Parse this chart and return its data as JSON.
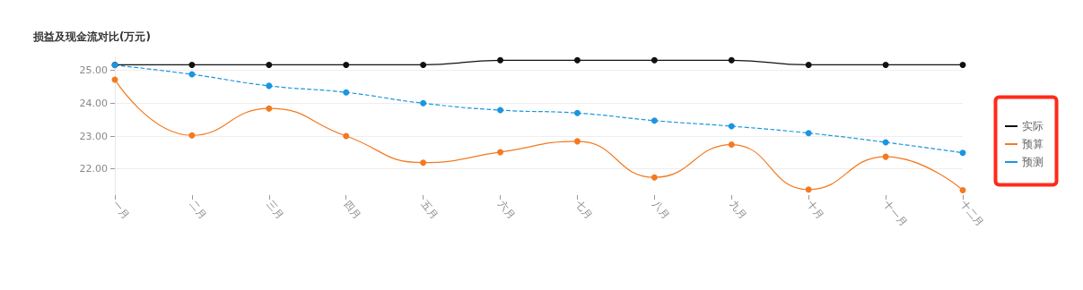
{
  "chart_data": {
    "type": "line",
    "title": "损益及现金流对比(万元)",
    "categories": [
      "一月",
      "二月",
      "三月",
      "四月",
      "五月",
      "六月",
      "七月",
      "八月",
      "九月",
      "十月",
      "十一月",
      "十二月"
    ],
    "series": [
      {
        "name": "实际",
        "color": "#111111",
        "line_style": "solid",
        "values": [
          25.17,
          25.17,
          25.17,
          25.17,
          25.17,
          25.31,
          25.31,
          25.31,
          25.31,
          25.17,
          25.17,
          25.17
        ]
      },
      {
        "name": "预算",
        "color": "#f47920",
        "line_style": "solid",
        "values": [
          24.72,
          23.02,
          23.84,
          23.0,
          22.19,
          22.51,
          22.84,
          21.74,
          22.74,
          21.37,
          22.37,
          21.35
        ]
      },
      {
        "name": "预测",
        "color": "#1a96e0",
        "line_style": "dashed",
        "values": [
          25.16,
          24.88,
          24.53,
          24.33,
          24.0,
          23.79,
          23.7,
          23.47,
          23.3,
          23.09,
          22.81,
          22.49
        ]
      }
    ],
    "ylim": [
      21.2,
      25.4
    ],
    "yticks": [
      {
        "value": 22,
        "label": "22.00"
      },
      {
        "value": 23,
        "label": "23.00"
      },
      {
        "value": 24,
        "label": "24.00"
      },
      {
        "value": 25,
        "label": "25.00"
      }
    ],
    "grid": "y",
    "legend": "right",
    "marker": "circle"
  }
}
